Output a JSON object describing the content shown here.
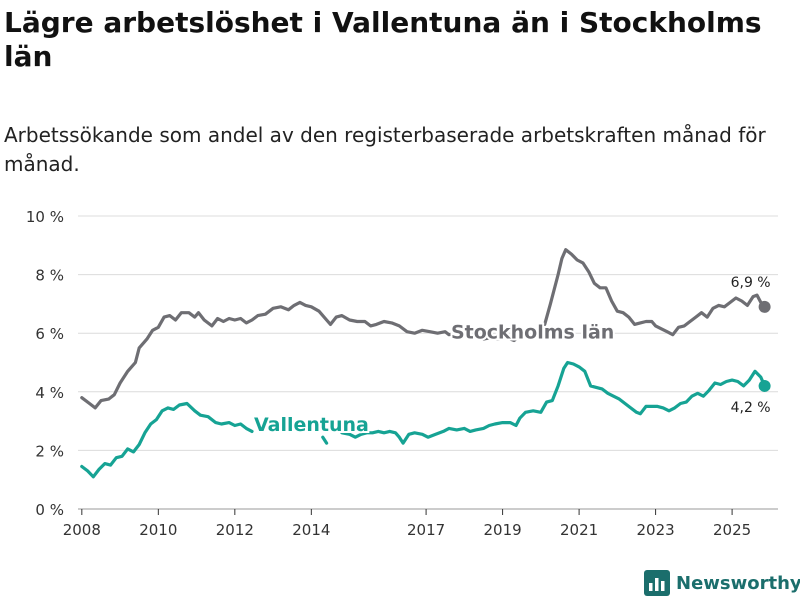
{
  "title": "Lägre arbetslöshet i Vallentuna än i Stockholms län",
  "subtitle": "Arbetssökande som andel av den registerbaserade arbetskraften månad för månad.",
  "brand": {
    "name": "Newsworthy"
  },
  "colors": {
    "stockholm": "#6e6e73",
    "vallentuna": "#16a394",
    "grid": "#dcdcdc",
    "brand": "#1b6e6c"
  },
  "chart_data": {
    "type": "line",
    "title": "Lägre arbetslöshet i Vallentuna än i Stockholms län",
    "xlabel": "",
    "ylabel": "",
    "xlim": [
      2007.9,
      2026.2
    ],
    "ylim": [
      0,
      10
    ],
    "grid": true,
    "y_ticks": [
      {
        "value": 0,
        "label": "0 %"
      },
      {
        "value": 2,
        "label": "2 %"
      },
      {
        "value": 4,
        "label": "4 %"
      },
      {
        "value": 6,
        "label": "6 %"
      },
      {
        "value": 8,
        "label": "8 %"
      },
      {
        "value": 10,
        "label": "10 %"
      }
    ],
    "x_ticks": [
      {
        "value": 2008,
        "label": "2008"
      },
      {
        "value": 2010,
        "label": "2010"
      },
      {
        "value": 2012,
        "label": "2012"
      },
      {
        "value": 2014,
        "label": "2014"
      },
      {
        "value": 2017,
        "label": "2017"
      },
      {
        "value": 2019,
        "label": "2019"
      },
      {
        "value": 2021,
        "label": "2021"
      },
      {
        "value": 2023,
        "label": "2023"
      },
      {
        "value": 2025,
        "label": "2025"
      }
    ],
    "series": [
      {
        "name": "Stockholms län",
        "label": "Stockholms län",
        "color": "#6e6e73",
        "points": [
          [
            2008.0,
            3.8
          ],
          [
            2008.2,
            3.6
          ],
          [
            2008.35,
            3.45
          ],
          [
            2008.5,
            3.7
          ],
          [
            2008.7,
            3.75
          ],
          [
            2008.85,
            3.9
          ],
          [
            2009.0,
            4.3
          ],
          [
            2009.2,
            4.7
          ],
          [
            2009.4,
            5.0
          ],
          [
            2009.5,
            5.5
          ],
          [
            2009.7,
            5.8
          ],
          [
            2009.85,
            6.1
          ],
          [
            2010.0,
            6.2
          ],
          [
            2010.15,
            6.55
          ],
          [
            2010.3,
            6.6
          ],
          [
            2010.45,
            6.45
          ],
          [
            2010.6,
            6.7
          ],
          [
            2010.8,
            6.7
          ],
          [
            2010.95,
            6.55
          ],
          [
            2011.05,
            6.7
          ],
          [
            2011.2,
            6.45
          ],
          [
            2011.4,
            6.25
          ],
          [
            2011.55,
            6.5
          ],
          [
            2011.7,
            6.4
          ],
          [
            2011.85,
            6.5
          ],
          [
            2012.0,
            6.45
          ],
          [
            2012.15,
            6.5
          ],
          [
            2012.3,
            6.35
          ],
          [
            2012.45,
            6.45
          ],
          [
            2012.6,
            6.6
          ],
          [
            2012.8,
            6.65
          ],
          [
            2013.0,
            6.85
          ],
          [
            2013.2,
            6.9
          ],
          [
            2013.4,
            6.8
          ],
          [
            2013.55,
            6.95
          ],
          [
            2013.7,
            7.05
          ],
          [
            2013.85,
            6.95
          ],
          [
            2014.0,
            6.9
          ],
          [
            2014.2,
            6.75
          ],
          [
            2014.4,
            6.45
          ],
          [
            2014.5,
            6.3
          ],
          [
            2014.65,
            6.55
          ],
          [
            2014.8,
            6.6
          ],
          [
            2015.0,
            6.45
          ],
          [
            2015.2,
            6.4
          ],
          [
            2015.4,
            6.4
          ],
          [
            2015.55,
            6.25
          ],
          [
            2015.7,
            6.3
          ],
          [
            2015.9,
            6.4
          ],
          [
            2016.1,
            6.35
          ],
          [
            2016.3,
            6.25
          ],
          [
            2016.5,
            6.05
          ],
          [
            2016.7,
            6.0
          ],
          [
            2016.9,
            6.1
          ],
          [
            2017.1,
            6.05
          ],
          [
            2017.3,
            6.0
          ],
          [
            2017.5,
            6.05
          ],
          [
            2017.6,
            5.95
          ],
          [
            2017.8,
            6.0
          ],
          [
            2017.95,
            6.05
          ],
          [
            2018.05,
            null
          ],
          [
            2018.35,
            5.9
          ],
          [
            2018.5,
            5.8
          ],
          [
            2018.7,
            5.85
          ],
          [
            2018.9,
            5.8
          ],
          [
            2019.1,
            5.85
          ],
          [
            2019.3,
            5.75
          ],
          [
            2019.45,
            5.9
          ],
          [
            2019.55,
            null
          ],
          [
            2020.1,
            6.3
          ],
          [
            2020.25,
            7.0
          ],
          [
            2020.45,
            8.0
          ],
          [
            2020.55,
            8.55
          ],
          [
            2020.65,
            8.85
          ],
          [
            2020.8,
            8.7
          ],
          [
            2020.95,
            8.5
          ],
          [
            2021.1,
            8.4
          ],
          [
            2021.25,
            8.1
          ],
          [
            2021.4,
            7.7
          ],
          [
            2021.55,
            7.55
          ],
          [
            2021.7,
            7.55
          ],
          [
            2021.85,
            7.1
          ],
          [
            2022.0,
            6.75
          ],
          [
            2022.15,
            6.7
          ],
          [
            2022.3,
            6.55
          ],
          [
            2022.45,
            6.3
          ],
          [
            2022.6,
            6.35
          ],
          [
            2022.75,
            6.4
          ],
          [
            2022.9,
            6.4
          ],
          [
            2023.0,
            6.25
          ],
          [
            2023.15,
            6.15
          ],
          [
            2023.3,
            6.05
          ],
          [
            2023.45,
            5.95
          ],
          [
            2023.6,
            6.2
          ],
          [
            2023.75,
            6.25
          ],
          [
            2023.9,
            6.4
          ],
          [
            2024.05,
            6.55
          ],
          [
            2024.2,
            6.7
          ],
          [
            2024.35,
            6.55
          ],
          [
            2024.5,
            6.85
          ],
          [
            2024.65,
            6.95
          ],
          [
            2024.8,
            6.9
          ],
          [
            2024.95,
            7.05
          ],
          [
            2025.1,
            7.2
          ],
          [
            2025.25,
            7.1
          ],
          [
            2025.4,
            6.95
          ],
          [
            2025.55,
            7.25
          ],
          [
            2025.65,
            7.3
          ],
          [
            2025.75,
            7.05
          ],
          [
            2025.85,
            6.9
          ]
        ],
        "end_value_label": "6,9 %"
      },
      {
        "name": "Vallentuna",
        "label": "Vallentuna",
        "color": "#16a394",
        "points": [
          [
            2008.0,
            1.45
          ],
          [
            2008.15,
            1.3
          ],
          [
            2008.3,
            1.1
          ],
          [
            2008.45,
            1.35
          ],
          [
            2008.6,
            1.55
          ],
          [
            2008.75,
            1.5
          ],
          [
            2008.9,
            1.75
          ],
          [
            2009.05,
            1.8
          ],
          [
            2009.2,
            2.05
          ],
          [
            2009.35,
            1.95
          ],
          [
            2009.5,
            2.2
          ],
          [
            2009.65,
            2.6
          ],
          [
            2009.8,
            2.9
          ],
          [
            2009.95,
            3.05
          ],
          [
            2010.1,
            3.35
          ],
          [
            2010.25,
            3.45
          ],
          [
            2010.4,
            3.4
          ],
          [
            2010.55,
            3.55
          ],
          [
            2010.75,
            3.6
          ],
          [
            2010.95,
            3.35
          ],
          [
            2011.1,
            3.2
          ],
          [
            2011.3,
            3.15
          ],
          [
            2011.5,
            2.95
          ],
          [
            2011.65,
            2.9
          ],
          [
            2011.85,
            2.95
          ],
          [
            2012.0,
            2.85
          ],
          [
            2012.15,
            2.9
          ],
          [
            2012.3,
            2.75
          ],
          [
            2012.45,
            2.65
          ],
          [
            2012.5,
            null
          ],
          [
            2014.3,
            2.45
          ],
          [
            2014.4,
            2.25
          ],
          [
            2014.5,
            null
          ],
          [
            2014.8,
            2.6
          ],
          [
            2015.0,
            2.55
          ],
          [
            2015.15,
            2.45
          ],
          [
            2015.3,
            2.55
          ],
          [
            2015.45,
            2.6
          ],
          [
            2015.6,
            2.6
          ],
          [
            2015.75,
            2.65
          ],
          [
            2015.9,
            2.6
          ],
          [
            2016.05,
            2.65
          ],
          [
            2016.2,
            2.6
          ],
          [
            2016.3,
            2.45
          ],
          [
            2016.4,
            2.25
          ],
          [
            2016.55,
            2.55
          ],
          [
            2016.7,
            2.6
          ],
          [
            2016.9,
            2.55
          ],
          [
            2017.05,
            2.45
          ],
          [
            2017.25,
            2.55
          ],
          [
            2017.45,
            2.65
          ],
          [
            2017.6,
            2.75
          ],
          [
            2017.8,
            2.7
          ],
          [
            2018.0,
            2.75
          ],
          [
            2018.15,
            2.65
          ],
          [
            2018.3,
            2.7
          ],
          [
            2018.5,
            2.75
          ],
          [
            2018.65,
            2.85
          ],
          [
            2018.8,
            2.9
          ],
          [
            2019.0,
            2.95
          ],
          [
            2019.2,
            2.95
          ],
          [
            2019.35,
            2.85
          ],
          [
            2019.45,
            3.1
          ],
          [
            2019.6,
            3.3
          ],
          [
            2019.8,
            3.35
          ],
          [
            2020.0,
            3.3
          ],
          [
            2020.15,
            3.65
          ],
          [
            2020.3,
            3.7
          ],
          [
            2020.45,
            4.2
          ],
          [
            2020.6,
            4.8
          ],
          [
            2020.7,
            5.0
          ],
          [
            2020.85,
            4.95
          ],
          [
            2021.0,
            4.85
          ],
          [
            2021.15,
            4.7
          ],
          [
            2021.3,
            4.2
          ],
          [
            2021.45,
            4.15
          ],
          [
            2021.6,
            4.1
          ],
          [
            2021.75,
            3.95
          ],
          [
            2021.9,
            3.85
          ],
          [
            2022.05,
            3.75
          ],
          [
            2022.2,
            3.6
          ],
          [
            2022.35,
            3.45
          ],
          [
            2022.5,
            3.3
          ],
          [
            2022.6,
            3.25
          ],
          [
            2022.75,
            3.5
          ],
          [
            2022.9,
            3.5
          ],
          [
            2023.05,
            3.5
          ],
          [
            2023.2,
            3.45
          ],
          [
            2023.35,
            3.35
          ],
          [
            2023.5,
            3.45
          ],
          [
            2023.65,
            3.6
          ],
          [
            2023.8,
            3.65
          ],
          [
            2023.95,
            3.85
          ],
          [
            2024.1,
            3.95
          ],
          [
            2024.25,
            3.85
          ],
          [
            2024.4,
            4.05
          ],
          [
            2024.55,
            4.3
          ],
          [
            2024.7,
            4.25
          ],
          [
            2024.85,
            4.35
          ],
          [
            2025.0,
            4.4
          ],
          [
            2025.15,
            4.35
          ],
          [
            2025.3,
            4.2
          ],
          [
            2025.45,
            4.4
          ],
          [
            2025.6,
            4.7
          ],
          [
            2025.75,
            4.5
          ],
          [
            2025.85,
            4.2
          ]
        ],
        "end_value_label": "4,2 %"
      }
    ]
  }
}
